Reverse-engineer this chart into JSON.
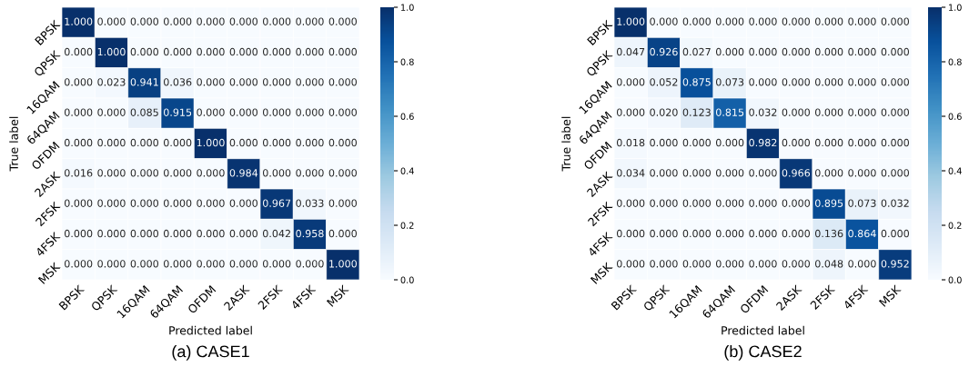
{
  "chart_data": [
    {
      "type": "heatmap",
      "title": "(a) CASE1",
      "xlabel": "Predicted label",
      "ylabel": "True label",
      "categories": [
        "BPSK",
        "QPSK",
        "16QAM",
        "64QAM",
        "OFDM",
        "2ASK",
        "2FSK",
        "4FSK",
        "MSK"
      ],
      "y_categories": [
        "BPSK",
        "QPSK",
        "16QAM",
        "64QAM",
        "OFDM",
        "2ASK",
        "2FSK",
        "4FSK",
        "MSK"
      ],
      "cells": [
        [
          1.0,
          0,
          0,
          0,
          0,
          0,
          0,
          0,
          0
        ],
        [
          0,
          1.0,
          0,
          0,
          0,
          0,
          0,
          0,
          0
        ],
        [
          0,
          0.023,
          0.941,
          0.036,
          0,
          0,
          0,
          0,
          0
        ],
        [
          0,
          0,
          0.085,
          0.915,
          0,
          0,
          0,
          0,
          0
        ],
        [
          0,
          0,
          0,
          0,
          1.0,
          0,
          0,
          0,
          0
        ],
        [
          0.016,
          0,
          0,
          0,
          0,
          0.984,
          0,
          0,
          0
        ],
        [
          0,
          0,
          0,
          0,
          0,
          0,
          0.967,
          0.033,
          0
        ],
        [
          0,
          0,
          0,
          0,
          0,
          0,
          0.042,
          0.958,
          0
        ],
        [
          0,
          0,
          0,
          0,
          0,
          0,
          0,
          0,
          1.0
        ]
      ],
      "cell_labels": [
        [
          "1.000",
          "0.000",
          "0.000",
          "0.000",
          "0.000",
          "0.000",
          "0.000",
          "0.000",
          "0.000"
        ],
        [
          "0.000",
          "1.000",
          "0.000",
          "0.000",
          "0.000",
          "0.000",
          "0.000",
          "0.000",
          "0.000"
        ],
        [
          "0.000",
          "0.023",
          "0.941",
          "0.036",
          "0.000",
          "0.000",
          "0.000",
          "0.000",
          "0.000"
        ],
        [
          "0.000",
          "0.000",
          "0.085",
          "0.915",
          "0.000",
          "0.000",
          "0.000",
          "0.000",
          "0.000"
        ],
        [
          "0.000",
          "0.000",
          "0.000",
          "0.000",
          "1.000",
          "0.000",
          "0.000",
          "0.000",
          "0.000"
        ],
        [
          "0.016",
          "0.000",
          "0.000",
          "0.000",
          "0.000",
          "0.984",
          "0.000",
          "0.000",
          "0.000"
        ],
        [
          "0.000",
          "0.000",
          "0.000",
          "0.000",
          "0.000",
          "0.000",
          "0.967",
          "0.033",
          "0.000"
        ],
        [
          "0.000",
          "0.000",
          "0.000",
          "0.000",
          "0.000",
          "0.000",
          "0.042",
          "0.958",
          "0.000"
        ],
        [
          "0.000",
          "0.000",
          "0.000",
          "0.000",
          "0.000",
          "0.000",
          "0.000",
          "0.000",
          "1.000"
        ]
      ],
      "clim": [
        0,
        1
      ],
      "cticks": [
        {
          "value": 0,
          "label": "0.0"
        },
        {
          "value": 0.2,
          "label": "0.2"
        },
        {
          "value": 0.4,
          "label": "0.4"
        },
        {
          "value": 0.6,
          "label": "0.6"
        },
        {
          "value": 0.8,
          "label": "0.8"
        },
        {
          "value": 1,
          "label": "1.0"
        }
      ]
    },
    {
      "type": "heatmap",
      "title": "(b) CASE2",
      "xlabel": "Predicted label",
      "ylabel": "True label",
      "categories": [
        "BPSK",
        "QPSK",
        "16QAM",
        "64QAM",
        "OFDM",
        "2ASK",
        "2FSK",
        "4FSK",
        "MSK"
      ],
      "y_categories": [
        "BPSK",
        "QPSK",
        "16QAM",
        "64QAM",
        "OFDM",
        "2ASK",
        "2FSK",
        "4FSK",
        "MSK"
      ],
      "cells": [
        [
          1.0,
          0,
          0,
          0,
          0,
          0,
          0,
          0,
          0
        ],
        [
          0.047,
          0.926,
          0.027,
          0,
          0,
          0,
          0,
          0,
          0
        ],
        [
          0,
          0.052,
          0.875,
          0.073,
          0,
          0,
          0,
          0,
          0
        ],
        [
          0,
          0.02,
          0.123,
          0.815,
          0.032,
          0,
          0,
          0,
          0
        ],
        [
          0.018,
          0,
          0,
          0,
          0.982,
          0,
          0,
          0,
          0
        ],
        [
          0.034,
          0,
          0,
          0,
          0,
          0.966,
          0,
          0,
          0
        ],
        [
          0,
          0,
          0,
          0,
          0,
          0,
          0.895,
          0.073,
          0.032
        ],
        [
          0,
          0,
          0,
          0,
          0,
          0,
          0.136,
          0.864,
          0
        ],
        [
          0,
          0,
          0,
          0,
          0,
          0,
          0.048,
          0,
          0.952
        ]
      ],
      "cell_labels": [
        [
          "1.000",
          "0.000",
          "0.000",
          "0.000",
          "0.000",
          "0.000",
          "0.000",
          "0.000",
          "0.000"
        ],
        [
          "0.047",
          "0.926",
          "0.027",
          "0.000",
          "0.000",
          "0.000",
          "0.000",
          "0.000",
          "0.000"
        ],
        [
          "0.000",
          "0.052",
          "0.875",
          "0.073",
          "0.000",
          "0.000",
          "0.000",
          "0.000",
          "0.000"
        ],
        [
          "0.000",
          "0.020",
          "0.123",
          "0.815",
          "0.032",
          "0.000",
          "0.000",
          "0.000",
          "0.000"
        ],
        [
          "0.018",
          "0.000",
          "0.000",
          "0.000",
          "0.982",
          "0.000",
          "0.000",
          "0.000",
          "0.000"
        ],
        [
          "0.034",
          "0.000",
          "0.000",
          "0.000",
          "0.000",
          "0.966",
          "0.000",
          "0.000",
          "0.000"
        ],
        [
          "0.000",
          "0.000",
          "0.000",
          "0.000",
          "0.000",
          "0.000",
          "0.895",
          "0.073",
          "0.032"
        ],
        [
          "0.000",
          "0.000",
          "0.000",
          "0.000",
          "0.000",
          "0.000",
          "0.136",
          "0.864",
          "0.000"
        ],
        [
          "0.000",
          "0.000",
          "0.000",
          "0.000",
          "0.000",
          "0.000",
          "0.048",
          "0.000",
          "0.952"
        ]
      ],
      "clim": [
        0,
        1
      ],
      "cticks": [
        {
          "value": 0,
          "label": "0.0"
        },
        {
          "value": 0.2,
          "label": "0.2"
        },
        {
          "value": 0.4,
          "label": "0.4"
        },
        {
          "value": 0.6,
          "label": "0.6"
        },
        {
          "value": 0.8,
          "label": "0.8"
        },
        {
          "value": 1,
          "label": "1.0"
        }
      ]
    }
  ]
}
